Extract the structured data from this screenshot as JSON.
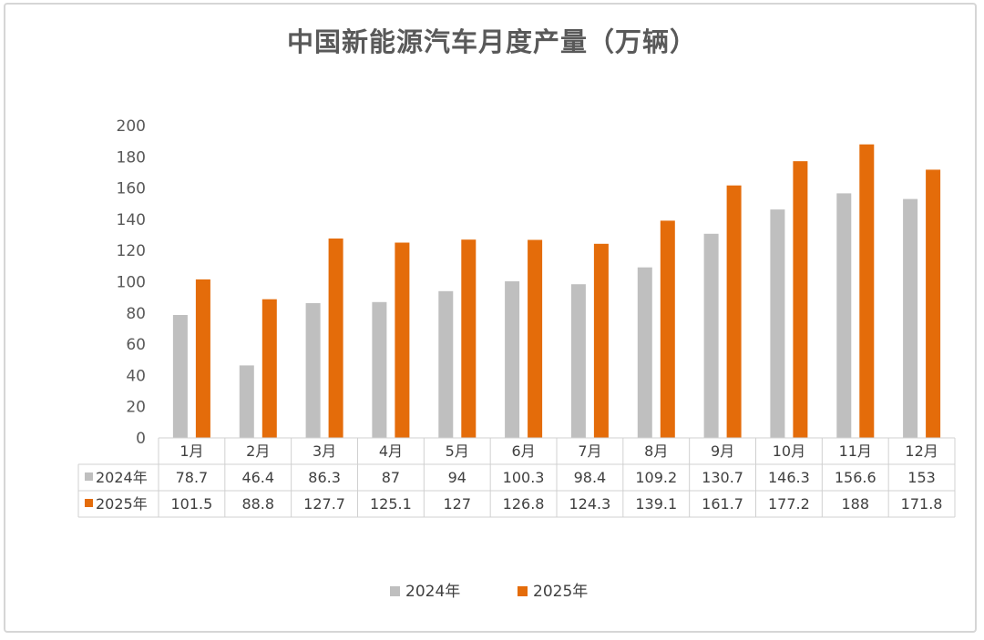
{
  "chart_data": {
    "type": "bar",
    "title": "中国新能源汽车月度产量（万辆）",
    "categories": [
      "1月",
      "2月",
      "3月",
      "4月",
      "5月",
      "6月",
      "7月",
      "8月",
      "9月",
      "10月",
      "11月",
      "12月"
    ],
    "series": [
      {
        "name": "2024年",
        "color": "#bfbfbf",
        "values": [
          78.7,
          46.4,
          86.3,
          87,
          94,
          100.3,
          98.4,
          109.2,
          130.7,
          146.3,
          156.6,
          153
        ]
      },
      {
        "name": "2025年",
        "color": "#e46c0a",
        "values": [
          101.5,
          88.8,
          127.7,
          125.1,
          127,
          126.8,
          124.3,
          139.1,
          161.7,
          177.2,
          188,
          171.8
        ]
      }
    ],
    "y_ticks": [
      0,
      20,
      40,
      60,
      80,
      100,
      120,
      140,
      160,
      180,
      200
    ],
    "ylim": [
      0,
      200
    ],
    "xlabel": "",
    "ylabel": "",
    "legend": "bottom",
    "data_table": true
  }
}
